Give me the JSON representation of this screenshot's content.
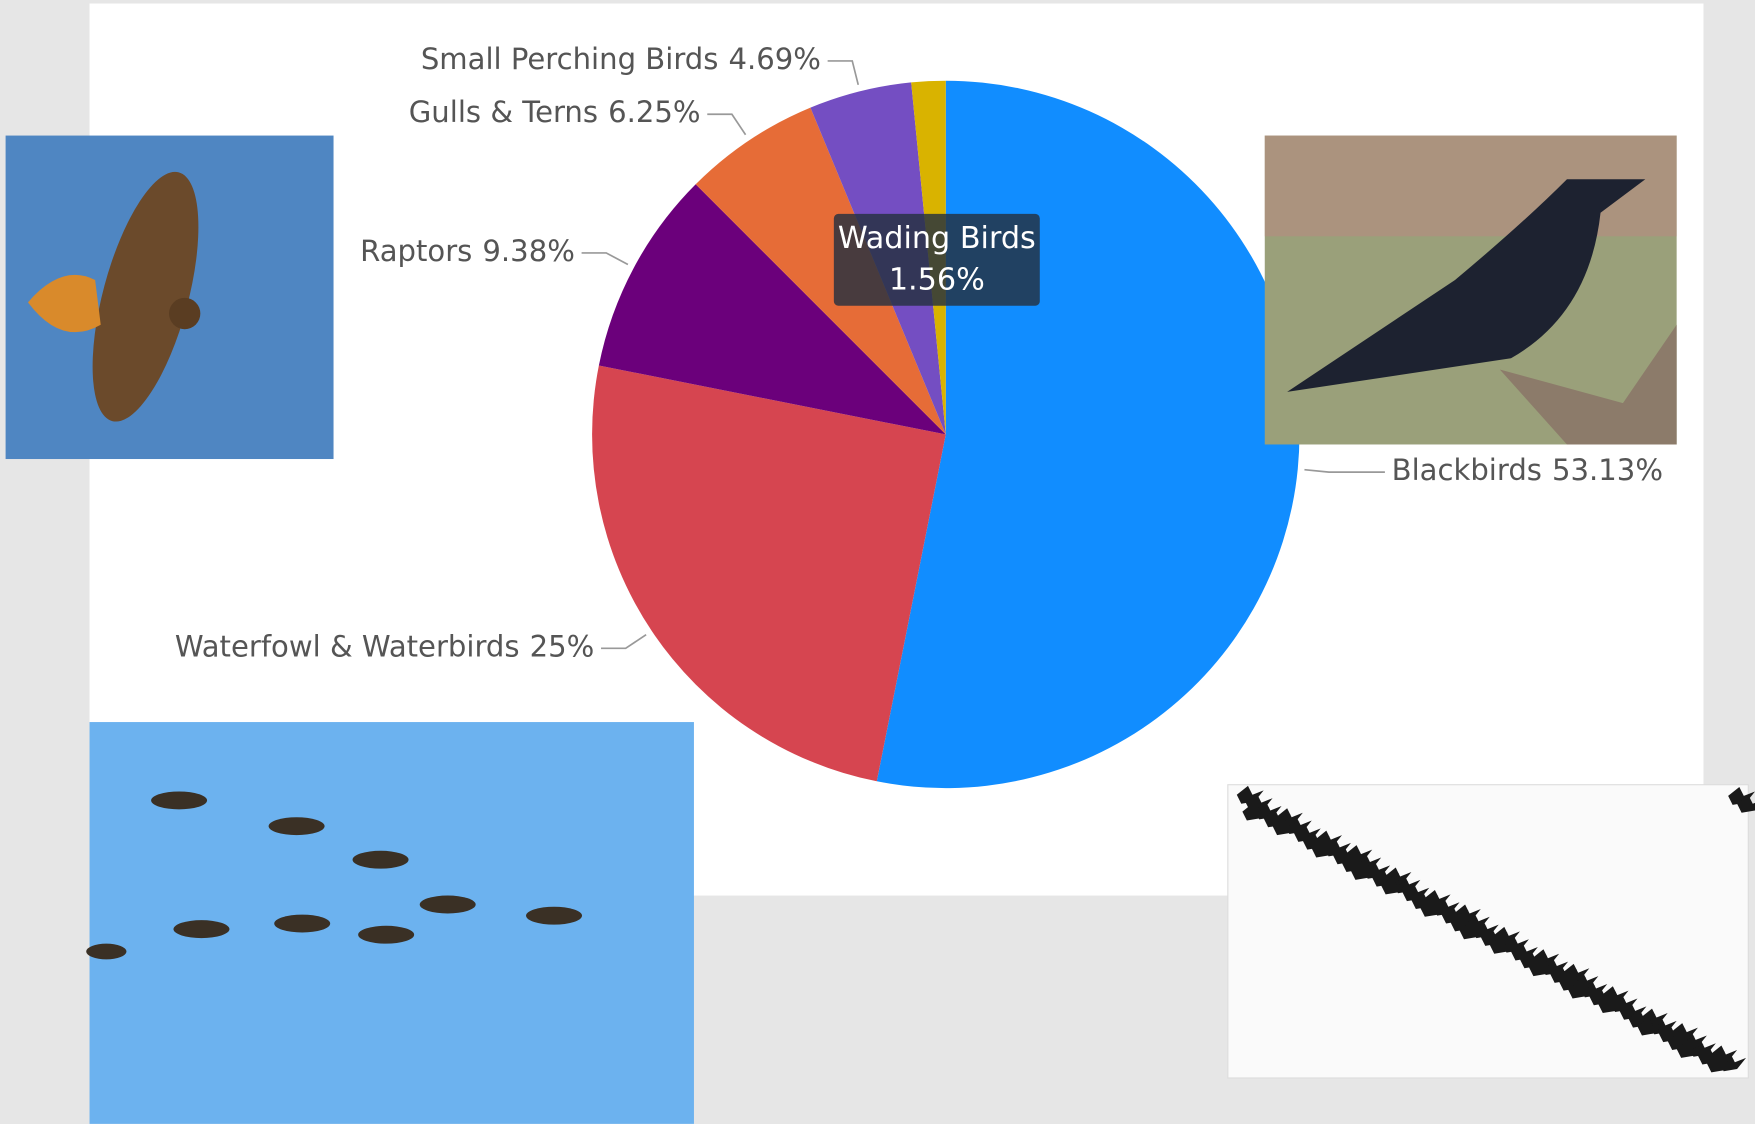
{
  "chart_data": {
    "type": "pie",
    "categories": [
      "Blackbirds",
      "Waterfowl & Waterbirds",
      "Raptors",
      "Gulls & Terns",
      "Small Perching Birds",
      "Wading Birds"
    ],
    "values": [
      53.13,
      25,
      9.38,
      6.25,
      4.69,
      1.56
    ],
    "value_labels": [
      "53.13%",
      "25%",
      "9.38%",
      "6.25%",
      "4.69%",
      "1.56%"
    ],
    "colors": [
      "#118dff",
      "#d64550",
      "#6b007b",
      "#e66c37",
      "#744ec2",
      "#d9b300"
    ]
  }
}
